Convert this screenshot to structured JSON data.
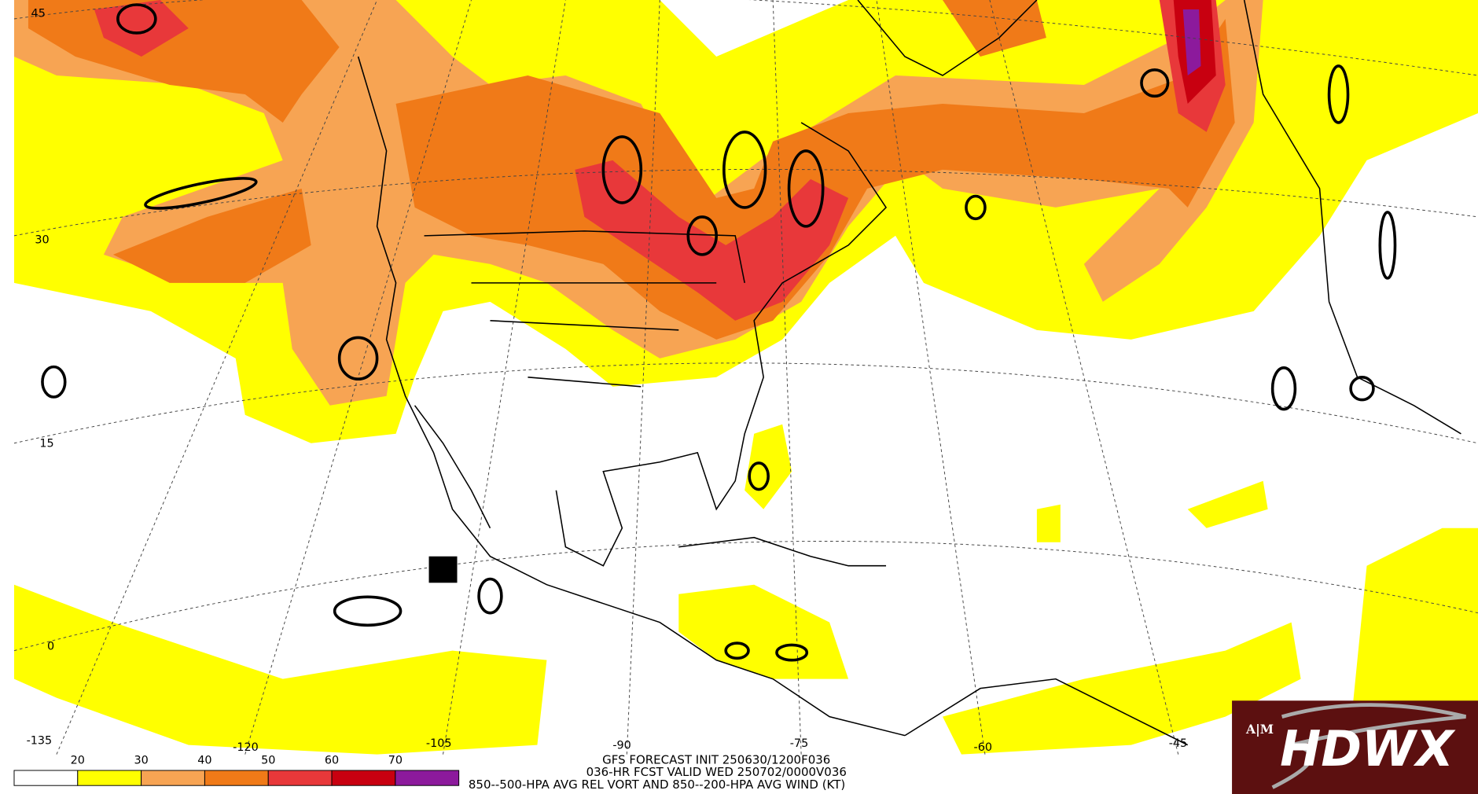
{
  "map": {
    "lat_labels": [
      "45",
      "30",
      "15",
      "0"
    ],
    "lon_labels": [
      "-135",
      "-120",
      "-105",
      "-90",
      "-75",
      "-60",
      "-45"
    ],
    "header": [
      "GFS FORECAST INIT 250630/1200F036",
      "036-HR FCST VALID WED 250702/0000V036",
      "850--500-HPA AVG REL VORT AND 850--200-HPA AVG WIND (KT)"
    ],
    "colorbar": {
      "levels": [
        20,
        30,
        40,
        50,
        60,
        70
      ],
      "colors": [
        "#ffffff",
        "#ffff00",
        "#f7a453",
        "#f07a18",
        "#e8383a",
        "#c80010",
        "#8c1a9c"
      ]
    },
    "logo": {
      "org": "A|M",
      "title": "HDWX"
    }
  }
}
